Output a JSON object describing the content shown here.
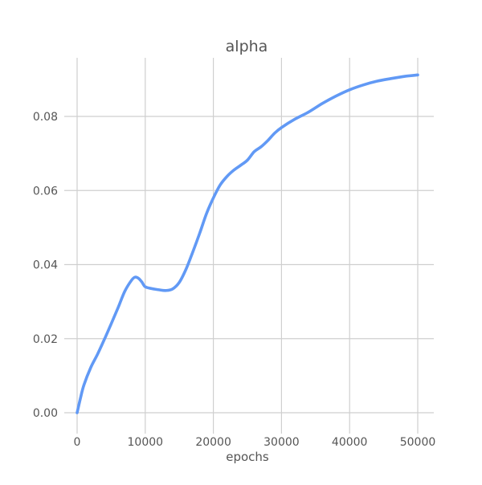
{
  "chart_data": {
    "type": "line",
    "title": "alpha",
    "xlabel": "epochs",
    "ylabel": "",
    "xlim": [
      0,
      50000
    ],
    "ylim": [
      0,
      0.09
    ],
    "grid": true,
    "x_ticks": [
      0,
      10000,
      20000,
      30000,
      40000,
      50000
    ],
    "x_tick_labels": [
      "0",
      "10000",
      "20000",
      "30000",
      "40000",
      "50000"
    ],
    "y_ticks": [
      0,
      0.02,
      0.04,
      0.06,
      0.08
    ],
    "y_tick_labels": [
      "0.00",
      "0.02",
      "0.04",
      "0.06",
      "0.08"
    ],
    "series": [
      {
        "color": "#6199f5",
        "x": [
          0,
          500,
          1000,
          2000,
          3000,
          4000,
          5000,
          6000,
          7000,
          8000,
          8500,
          9000,
          9500,
          10000,
          11000,
          12000,
          13000,
          14000,
          15000,
          16000,
          17000,
          18000,
          19000,
          20000,
          21000,
          22000,
          23000,
          24000,
          25000,
          26000,
          27000,
          28000,
          29000,
          30000,
          32000,
          34000,
          36000,
          38000,
          40000,
          42000,
          44000,
          46000,
          48000,
          50000
        ],
        "y": [
          0,
          0.004,
          0.0075,
          0.0122,
          0.0158,
          0.0198,
          0.024,
          0.0283,
          0.0328,
          0.0358,
          0.0366,
          0.0363,
          0.0353,
          0.034,
          0.0335,
          0.0332,
          0.033,
          0.0334,
          0.0352,
          0.0388,
          0.0435,
          0.0485,
          0.0538,
          0.058,
          0.0615,
          0.0638,
          0.0655,
          0.0668,
          0.0682,
          0.0705,
          0.0718,
          0.0735,
          0.0755,
          0.077,
          0.0793,
          0.0812,
          0.0835,
          0.0855,
          0.0872,
          0.0885,
          0.0895,
          0.0902,
          0.0908,
          0.0912
        ]
      }
    ]
  }
}
